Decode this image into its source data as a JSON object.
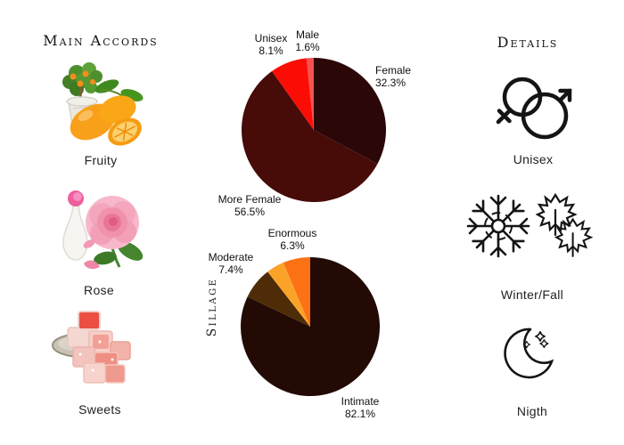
{
  "accords": {
    "heading": "Main Accords",
    "items": [
      {
        "label": "Fruity",
        "image": "kumquat-fruits-photo"
      },
      {
        "label": "Rose",
        "image": "pink-rose-and-vase-photo"
      },
      {
        "label": "Sweets",
        "image": "turkish-delight-photo"
      }
    ]
  },
  "details": {
    "heading": "Details",
    "items": [
      {
        "label": "Unisex",
        "icon": "unisex-gender-icon"
      },
      {
        "label": "Winter/Fall",
        "icon": "snowflake-maple-leaves-icon"
      },
      {
        "label": "Nigth",
        "icon": "crescent-moon-stars-icon"
      }
    ]
  },
  "chart_data": [
    {
      "type": "pie",
      "name": "gender-audience",
      "start_angle_deg": 0,
      "direction": "clockwise",
      "legend_position": "outside-labels",
      "slices": [
        {
          "label": "Female",
          "value": 32.3,
          "pct": "32.3%",
          "color": "#2b0708"
        },
        {
          "label": "More Female",
          "value": 56.5,
          "pct": "56.5%",
          "color": "#470b08"
        },
        {
          "label": "Unisex",
          "value": 8.1,
          "pct": "8.1%",
          "color": "#fb0d06"
        },
        {
          "label": "Male",
          "value": 1.6,
          "pct": "1.6%",
          "color": "#f4534f"
        }
      ]
    },
    {
      "type": "pie",
      "name": "sillage",
      "ylabel": "Sillage",
      "start_angle_deg": 0,
      "direction": "clockwise",
      "legend_position": "outside-labels",
      "slices": [
        {
          "label": "Intimate",
          "value": 82.1,
          "pct": "82.1%",
          "color": "#230a04"
        },
        {
          "label": "Moderate",
          "value": 7.4,
          "pct": "7.4%",
          "color": "#4e2c08"
        },
        {
          "label": "",
          "value": 4.2,
          "pct": "",
          "color": "#fba328"
        },
        {
          "label": "Enormous",
          "value": 6.3,
          "pct": "6.3%",
          "color": "#fc7113"
        }
      ]
    }
  ]
}
